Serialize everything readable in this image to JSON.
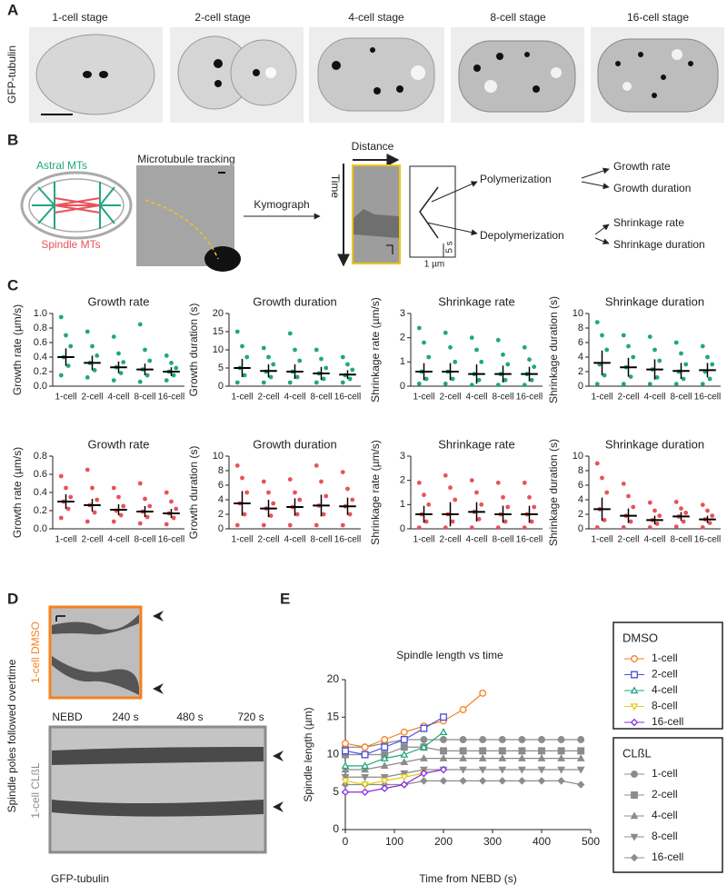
{
  "panels": {
    "A": {
      "letter": "A",
      "stages": [
        "1-cell stage",
        "2-cell stage",
        "4-cell stage",
        "8-cell stage",
        "16-cell stage"
      ],
      "y_label": "GFP-tubulin"
    },
    "B": {
      "letter": "B",
      "astral": "Astral MTs",
      "spindle": "Spindle MTs",
      "tracking": "Microtubule tracking",
      "kymograph": "Kymograph",
      "distance": "Distance",
      "time": "Time",
      "scale_time": "5 s",
      "scale_dist": "1 µm",
      "polymerization": "Polymerization",
      "depolymerization": "Depolymerization",
      "outputs": [
        "Growth rate",
        "Growth duration",
        "Shrinkage rate",
        "Shrinkage duration"
      ]
    },
    "C": {
      "letter": "C"
    },
    "D": {
      "letter": "D",
      "dmso": "1-cell DMSO",
      "clbl": "1-cell CLßL",
      "y_label": "Spindle poles followed overtime",
      "times": [
        "NEBD",
        "240 s",
        "480 s",
        "720 s"
      ],
      "x_label": "GFP-tubulin"
    },
    "E": {
      "letter": "E"
    }
  },
  "chart_data": [
    {
      "type": "dot",
      "title": "Growth rate",
      "y_label": "Growth rate (µm/s)",
      "color": "#1fa782",
      "categories": [
        "1-cell",
        "2-cell",
        "4-cell",
        "8-cell",
        "16-cell"
      ],
      "ylim": [
        0,
        1.0
      ],
      "yticks": [
        {
          "value": 0,
          "label": "0.0"
        },
        0.2,
        0.4,
        0.6,
        0.8,
        {
          "value": 1,
          "label": "1.0"
        }
      ],
      "means": [
        0.4,
        0.32,
        0.26,
        0.23,
        0.2
      ],
      "sds": [
        0.12,
        0.1,
        0.08,
        0.08,
        0.06
      ],
      "points": [
        [
          0.95,
          0.7,
          0.55,
          0.4,
          0.28,
          0.15
        ],
        [
          0.75,
          0.55,
          0.42,
          0.32,
          0.22,
          0.12
        ],
        [
          0.68,
          0.45,
          0.33,
          0.26,
          0.18,
          0.08
        ],
        [
          0.85,
          0.5,
          0.35,
          0.23,
          0.15,
          0.06
        ],
        [
          0.42,
          0.32,
          0.25,
          0.2,
          0.15,
          0.08
        ]
      ]
    },
    {
      "type": "dot",
      "title": "Growth duration",
      "y_label": "Growth duration (s)",
      "color": "#1fa782",
      "categories": [
        "1-cell",
        "2-cell",
        "4-cell",
        "8-cell",
        "16-cell"
      ],
      "ylim": [
        0,
        20
      ],
      "yticks": [
        0,
        5,
        10,
        15,
        20
      ],
      "means": [
        5,
        4.2,
        4,
        3.5,
        3.2
      ],
      "sds": [
        2.5,
        1.8,
        2,
        1.8,
        1.2
      ],
      "points": [
        [
          15,
          11,
          8,
          5,
          3,
          1
        ],
        [
          10.5,
          8,
          6,
          4,
          2.5,
          1
        ],
        [
          14.5,
          10,
          7,
          4,
          2.5,
          1
        ],
        [
          10,
          7.5,
          5,
          3.5,
          2,
          1
        ],
        [
          8,
          6,
          4.5,
          3,
          2,
          1
        ]
      ]
    },
    {
      "type": "dot",
      "title": "Shrinkage rate",
      "y_label": "Shrinkage rate (µm/s)",
      "color": "#1fa782",
      "categories": [
        "1-cell",
        "2-cell",
        "4-cell",
        "8-cell",
        "16-cell"
      ],
      "ylim": [
        0,
        3
      ],
      "yticks": [
        0,
        1,
        2,
        3
      ],
      "means": [
        0.6,
        0.6,
        0.5,
        0.5,
        0.5
      ],
      "sds": [
        0.35,
        0.35,
        0.4,
        0.35,
        0.3
      ],
      "points": [
        [
          2.4,
          1.8,
          1.2,
          0.6,
          0.3,
          0.1
        ],
        [
          2.2,
          1.6,
          1,
          0.6,
          0.3,
          0.1
        ],
        [
          2,
          1.5,
          1,
          0.5,
          0.25,
          0.05
        ],
        [
          1.9,
          1.3,
          0.9,
          0.5,
          0.25,
          0.05
        ],
        [
          1.6,
          1.1,
          0.8,
          0.5,
          0.25,
          0.05
        ]
      ]
    },
    {
      "type": "dot",
      "title": "Shrinkage duration",
      "y_label": "Shrinkage duration (s)",
      "color": "#1fa782",
      "categories": [
        "1-cell",
        "2-cell",
        "4-cell",
        "8-cell",
        "16-cell"
      ],
      "ylim": [
        0,
        10
      ],
      "yticks": [
        0,
        2,
        4,
        6,
        8,
        10
      ],
      "means": [
        3.2,
        2.6,
        2.3,
        2.1,
        2.2
      ],
      "sds": [
        1.7,
        1.3,
        1.4,
        1.1,
        1.0
      ],
      "points": [
        [
          8.8,
          7,
          5,
          3,
          1.5,
          0.3
        ],
        [
          7,
          5.5,
          4,
          2.6,
          1.3,
          0.3
        ],
        [
          6.8,
          5,
          3.5,
          2.3,
          1.2,
          0.3
        ],
        [
          6,
          4.5,
          3,
          2,
          1,
          0.3
        ],
        [
          5.5,
          4,
          3,
          2,
          1,
          0.3
        ]
      ]
    },
    {
      "type": "dot",
      "title": "Growth rate",
      "y_label": "Growth rate (µm/s)",
      "color": "#e8525a",
      "categories": [
        "1-cell",
        "2-cell",
        "4-cell",
        "8-cell",
        "16-cell"
      ],
      "ylim": [
        0,
        0.8
      ],
      "yticks": [
        {
          "value": 0,
          "label": "0.0"
        },
        0.2,
        0.4,
        0.6,
        0.8
      ],
      "means": [
        0.3,
        0.26,
        0.21,
        0.19,
        0.17
      ],
      "sds": [
        0.08,
        0.07,
        0.06,
        0.06,
        0.05
      ],
      "points": [
        [
          0.58,
          0.45,
          0.35,
          0.3,
          0.22,
          0.12
        ],
        [
          0.65,
          0.45,
          0.32,
          0.26,
          0.18,
          0.08
        ],
        [
          0.45,
          0.35,
          0.25,
          0.2,
          0.15,
          0.08
        ],
        [
          0.5,
          0.33,
          0.25,
          0.19,
          0.13,
          0.06
        ],
        [
          0.4,
          0.3,
          0.22,
          0.17,
          0.12,
          0.05
        ]
      ]
    },
    {
      "type": "dot",
      "title": "Growth duration",
      "y_label": "Growth duration (s)",
      "color": "#e8525a",
      "categories": [
        "1-cell",
        "2-cell",
        "4-cell",
        "8-cell",
        "16-cell"
      ],
      "ylim": [
        0,
        10
      ],
      "yticks": [
        0,
        2,
        4,
        6,
        8,
        10
      ],
      "means": [
        3.5,
        2.8,
        3,
        3.2,
        3.1
      ],
      "sds": [
        1.7,
        1.2,
        1.2,
        1.5,
        1.2
      ],
      "points": [
        [
          8.7,
          7,
          5,
          3.5,
          2,
          0.5
        ],
        [
          6.5,
          5,
          3.5,
          2.8,
          1.8,
          0.5
        ],
        [
          6.8,
          5,
          4,
          3,
          2,
          0.5
        ],
        [
          8.7,
          6.5,
          4.5,
          3.2,
          2,
          0.5
        ],
        [
          7.8,
          5.5,
          4,
          3.1,
          2,
          0.5
        ]
      ]
    },
    {
      "type": "dot",
      "title": "Shrinkage rate",
      "y_label": "Shrinkage rate (µm/s)",
      "color": "#e8525a",
      "categories": [
        "1-cell",
        "2-cell",
        "4-cell",
        "8-cell",
        "16-cell"
      ],
      "ylim": [
        0,
        3
      ],
      "yticks": [
        0,
        1,
        2,
        3
      ],
      "means": [
        0.6,
        0.6,
        0.7,
        0.6,
        0.6
      ],
      "sds": [
        0.35,
        0.5,
        0.4,
        0.35,
        0.35
      ],
      "points": [
        [
          1.9,
          1.4,
          1,
          0.6,
          0.3,
          0.05
        ],
        [
          2.2,
          1.7,
          1.2,
          0.6,
          0.3,
          0.05
        ],
        [
          2,
          1.5,
          1,
          0.7,
          0.4,
          0.05
        ],
        [
          1.9,
          1.3,
          0.9,
          0.6,
          0.3,
          0.05
        ],
        [
          1.9,
          1.3,
          0.9,
          0.6,
          0.3,
          0.05
        ]
      ]
    },
    {
      "type": "dot",
      "title": "Shrinkage duration",
      "y_label": "Shrinkage duration (s)",
      "color": "#e8525a",
      "categories": [
        "1-cell",
        "2-cell",
        "4-cell",
        "8-cell",
        "16-cell"
      ],
      "ylim": [
        0,
        10
      ],
      "yticks": [
        0,
        2,
        4,
        6,
        8,
        10
      ],
      "means": [
        2.7,
        1.8,
        1.2,
        1.7,
        1.3
      ],
      "sds": [
        1.6,
        1.0,
        0.6,
        0.6,
        0.5
      ],
      "points": [
        [
          9,
          7,
          5,
          2.7,
          1.2,
          0.2
        ],
        [
          6.2,
          4.5,
          3,
          1.8,
          1,
          0.2
        ],
        [
          3.6,
          2.5,
          1.8,
          1.2,
          0.7,
          0.2
        ],
        [
          3.7,
          2.8,
          2.2,
          1.7,
          1,
          0.3
        ],
        [
          3.3,
          2.5,
          1.8,
          1.3,
          0.8,
          0.2
        ]
      ]
    },
    {
      "type": "line",
      "title": "Spindle length vs time",
      "x_label": "Time from NEBD (s)",
      "y_label": "Spindle length (µm)",
      "xlim": [
        0,
        500
      ],
      "xticks": [
        0,
        100,
        200,
        300,
        400,
        500
      ],
      "ylim": [
        0,
        20
      ],
      "yticks": [
        0,
        5,
        10,
        15,
        20
      ],
      "series_groups": [
        {
          "title": "DMSO",
          "filled": false,
          "series": [
            {
              "name": "1-cell",
              "color": "#f5821f",
              "marker": "circle",
              "x": [
                0,
                40,
                80,
                120,
                160,
                200,
                240,
                280
              ],
              "values": [
                11.5,
                11,
                12,
                13,
                13.8,
                14.5,
                16,
                18.2
              ]
            },
            {
              "name": "2-cell",
              "color": "#4d4dd9",
              "marker": "square",
              "x": [
                0,
                40,
                80,
                120,
                160,
                200
              ],
              "values": [
                10.5,
                10,
                11,
                12,
                13.5,
                15
              ]
            },
            {
              "name": "4-cell",
              "color": "#1fa782",
              "marker": "triangle",
              "x": [
                0,
                40,
                80,
                120,
                160,
                200
              ],
              "values": [
                8.5,
                8.5,
                9.5,
                10,
                11,
                13
              ]
            },
            {
              "name": "8-cell",
              "color": "#e3cc1c",
              "marker": "triangle-down",
              "x": [
                0,
                40,
                80,
                120,
                160
              ],
              "values": [
                6.5,
                6,
                6.5,
                7,
                7.5
              ]
            },
            {
              "name": "16-cell",
              "color": "#8a2be2",
              "marker": "diamond",
              "x": [
                0,
                40,
                80,
                120,
                160,
                200
              ],
              "values": [
                5,
                5,
                5.5,
                6,
                7.5,
                8
              ]
            }
          ]
        },
        {
          "title": "CLßL",
          "filled": true,
          "series": [
            {
              "name": "1-cell",
              "color": "#8c8c8c",
              "marker": "circle",
              "x": [
                0,
                40,
                80,
                120,
                160,
                200,
                240,
                280,
                320,
                360,
                400,
                440,
                480
              ],
              "values": [
                11,
                11,
                11.5,
                12,
                12,
                12,
                12,
                12,
                12,
                12,
                12,
                12,
                12
              ]
            },
            {
              "name": "2-cell",
              "color": "#8c8c8c",
              "marker": "square",
              "x": [
                0,
                40,
                80,
                120,
                160,
                200,
                240,
                280,
                320,
                360,
                400,
                440,
                480
              ],
              "values": [
                10,
                10,
                10,
                11,
                11,
                10.5,
                10.5,
                10.5,
                10.5,
                10.5,
                10.5,
                10.5,
                10.5
              ]
            },
            {
              "name": "4-cell",
              "color": "#8c8c8c",
              "marker": "triangle",
              "x": [
                0,
                40,
                80,
                120,
                160,
                200,
                240,
                280,
                320,
                360,
                400,
                440,
                480
              ],
              "values": [
                8,
                8,
                8.5,
                9,
                9.5,
                9.5,
                9.5,
                9.5,
                9.5,
                9.5,
                9.5,
                9.5,
                9.5
              ]
            },
            {
              "name": "8-cell",
              "color": "#8c8c8c",
              "marker": "triangle-down",
              "x": [
                0,
                40,
                80,
                120,
                160,
                200,
                240,
                280,
                320,
                360,
                400,
                440,
                480
              ],
              "values": [
                7,
                7,
                7,
                7.5,
                8,
                8,
                8,
                8,
                8,
                8,
                8,
                8,
                8
              ]
            },
            {
              "name": "16-cell",
              "color": "#8c8c8c",
              "marker": "diamond",
              "x": [
                0,
                40,
                80,
                120,
                160,
                200,
                240,
                280,
                320,
                360,
                400,
                440,
                480
              ],
              "values": [
                6,
                6,
                6,
                6,
                6.5,
                6.5,
                6.5,
                6.5,
                6.5,
                6.5,
                6.5,
                6.5,
                6
              ]
            }
          ]
        }
      ]
    }
  ]
}
